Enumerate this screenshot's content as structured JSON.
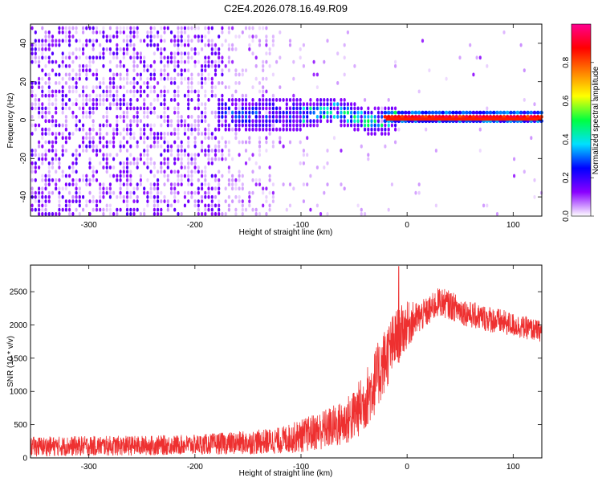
{
  "figure": {
    "title": "C2E4.2026.078.16.49.R09"
  },
  "chart_data": [
    {
      "type": "heatmap",
      "title": "C2E4.2026.078.16.49.R09",
      "xlabel": "Height of straight line (km)",
      "ylabel": "Frequency (Hz)",
      "xlim": [
        -355,
        127
      ],
      "ylim": [
        -50,
        50
      ],
      "x_ticks": [
        -300,
        -200,
        -100,
        0,
        100
      ],
      "y_ticks": [
        -40,
        -20,
        0,
        20,
        40
      ],
      "colorbar": {
        "label": "Normalized spectral amplitude",
        "range": [
          0.0,
          1.0
        ],
        "ticks": [
          0.0,
          0.2,
          0.4,
          0.6,
          0.8
        ],
        "colors": [
          "#ffffff",
          "#8a00ff",
          "#0000ff",
          "#00e0ff",
          "#00ff40",
          "#ffff00",
          "#ff8000",
          "#ff0000",
          "#ff0090"
        ]
      },
      "features": [
        {
          "x_range": [
            -355,
            -175
          ],
          "freq_range": [
            -50,
            48
          ],
          "amplitude": 0.1,
          "description": "diffuse purple noise"
        },
        {
          "x_range": [
            -175,
            -125
          ],
          "freq_range": [
            -50,
            48
          ],
          "amplitude": 0.05
        },
        {
          "x_range": [
            -180,
            -10
          ],
          "freq_center": 2,
          "freq_halfwidth": 10,
          "amplitude": 0.3
        },
        {
          "x_range": [
            -100,
            -20
          ],
          "freq_center": 3,
          "freq_halfwidth": 6,
          "amplitude": 0.4
        },
        {
          "x_range": [
            -20,
            127
          ],
          "freq_center": 0,
          "freq_halfwidth": 1,
          "amplitude": 0.85
        }
      ]
    },
    {
      "type": "line",
      "xlabel": "Height of straight line (km)",
      "ylabel": "SNR (10 * v/v)",
      "xlim": [
        -355,
        127
      ],
      "ylim": [
        0,
        2900
      ],
      "x_ticks": [
        -300,
        -200,
        -100,
        0,
        100
      ],
      "y_ticks": [
        0,
        500,
        1000,
        1500,
        2000,
        2500
      ],
      "color": "#ee3030",
      "x": [
        -355,
        -300,
        -250,
        -200,
        -150,
        -120,
        -100,
        -80,
        -60,
        -50,
        -40,
        -30,
        -20,
        -10,
        0,
        10,
        20,
        30,
        40,
        60,
        80,
        100,
        127
      ],
      "y": [
        170,
        180,
        185,
        200,
        230,
        260,
        330,
        420,
        520,
        640,
        850,
        1150,
        1500,
        1800,
        2000,
        2100,
        2200,
        2350,
        2300,
        2150,
        2080,
        2000,
        1900
      ],
      "noise_amplitude": [
        150,
        150,
        150,
        150,
        180,
        200,
        250,
        300,
        350,
        400,
        450,
        500,
        500,
        450,
        350,
        250,
        220,
        220,
        220,
        200,
        200,
        180,
        160
      ],
      "peak": {
        "x": -8,
        "y": 2880
      }
    }
  ]
}
